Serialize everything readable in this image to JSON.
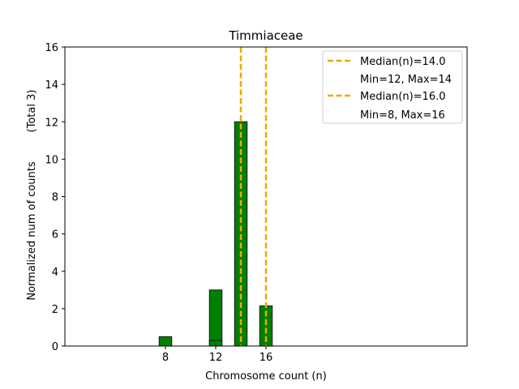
{
  "chart_data": {
    "type": "bar",
    "title": "Timmiaceae",
    "xlabel": "Chromosome count (n)",
    "ylabel": "Normalized num of counts",
    "ylabel_total": "(Total 3)",
    "xlim": [
      0,
      32
    ],
    "ylim": [
      0,
      16
    ],
    "xticks": [
      8,
      12,
      16
    ],
    "yticks": [
      0,
      2,
      4,
      6,
      8,
      10,
      12,
      14,
      16
    ],
    "bar_width": 1,
    "bars": [
      {
        "x": 8,
        "value": 0.5
      },
      {
        "x": 12,
        "value": 3
      },
      {
        "x": 12,
        "value": 0.3
      },
      {
        "x": 14,
        "value": 12
      },
      {
        "x": 16,
        "value": 2.15
      }
    ],
    "medians": [
      {
        "x": 14,
        "legend": "Median(n)=14.0",
        "range": "Min=12, Max=14"
      },
      {
        "x": 16,
        "legend": "Median(n)=16.0",
        "range": "Min=8, Max=16"
      }
    ],
    "colors": {
      "bar_fill": "#008000",
      "bar_edge": "#1a1a1a",
      "median_line": "#f0a800",
      "axes": "#000000"
    },
    "legend_position": "upper right"
  }
}
